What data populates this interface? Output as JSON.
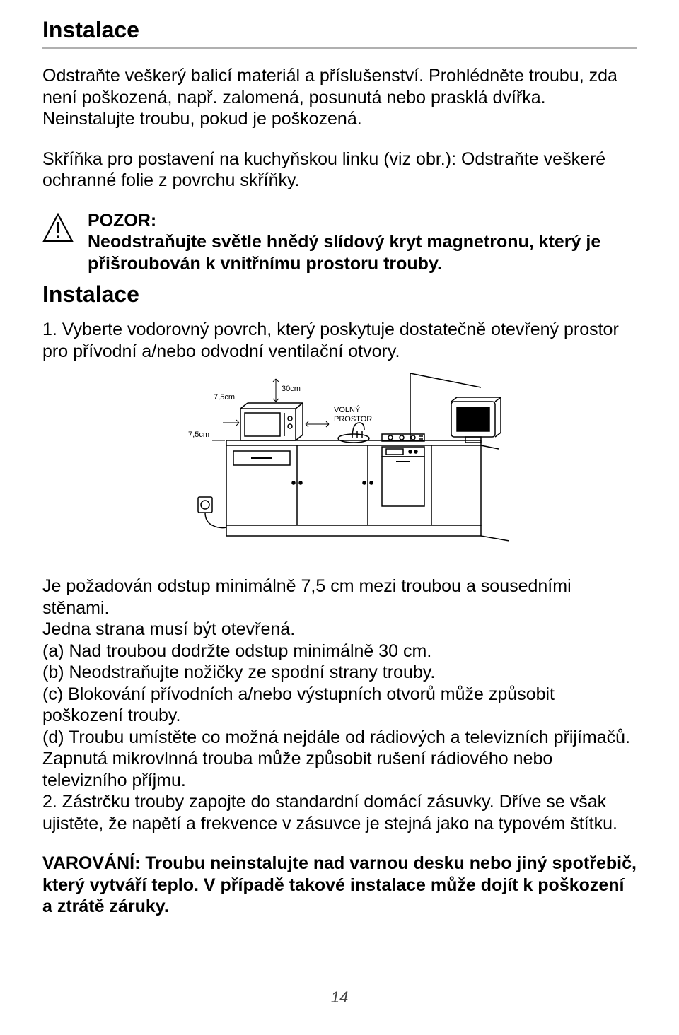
{
  "title": "Instalace",
  "intro": "Odstraňte veškerý balicí materiál a příslušenství. Prohlédněte troubu, zda není poškozená, např. zalomená, posunutá nebo prasklá dvířka. Neinstalujte troubu, pokud je poškozená.",
  "cabinet": "Skříňka pro postavení na kuchyňskou linku (viz obr.): Odstraňte veškeré ochranné folie z povrchu skříňky.",
  "warning_label": "POZOR:",
  "warning_text": "Neodstraňujte světle hnědý slídový kryt magnetronu, který je přišroubován k vnitřnímu prostoru trouby.",
  "subtitle": "Instalace",
  "step1": "1. Vyberte vodorovný povrch, který poskytuje dostatečně otevřený prostor pro přívodní a/nebo odvodní ventilační otvory.",
  "diagram": {
    "label_30cm": "30cm",
    "label_75cm_a": "7,5cm",
    "label_75cm_b": "7,5cm",
    "label_free1": "VOLNÝ",
    "label_free2": "PROSTOR",
    "stroke": "#000000",
    "label_fontsize": 11
  },
  "after_diagram": "Je požadován odstup minimálně 7,5 cm mezi troubou a sousedními stěnami.\nJedna strana musí být otevřená.\n(a) Nad troubou dodržte odstup minimálně 30 cm.\n(b) Neodstraňujte nožičky ze spodní strany trouby.\n(c) Blokování přívodních a/nebo výstupních otvorů může způsobit poškození trouby.\n(d) Troubu umístěte co možná nejdále od rádiových a televizních přijímačů. Zapnutá mikrovlnná trouba může způsobit rušení rádiového nebo televizního příjmu.\n2. Zástrčku trouby zapojte do standardní domácí zásuvky. Dříve se však ujistěte, že napětí a frekvence v zásuvce je stejná jako na typovém štítku.",
  "final_warning": "VAROVÁNÍ: Troubu neinstalujte nad varnou desku nebo jiný spotřebič, který vytváří teplo. V případě takové instalace může dojít k poškození a ztrátě záruky.",
  "page_number": "14"
}
